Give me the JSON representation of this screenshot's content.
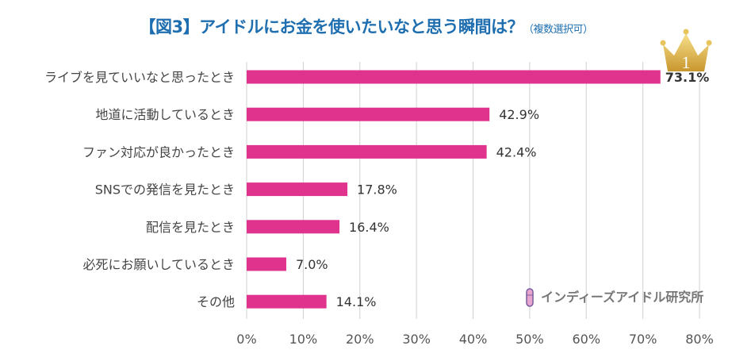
{
  "title": "【図3】アイドルにお金を使いたいなと思う瞬間は？",
  "subtitle": "（複数選択可）",
  "brand": "インディーズアイドル研究所",
  "crown_badge": "1",
  "colors": {
    "bar": "#e0338e",
    "top_label": "#c8206f",
    "title": "#1f6fb0",
    "grid": "#d0d0d0"
  },
  "chart_data": {
    "type": "bar",
    "orientation": "horizontal",
    "categories": [
      "ライブを見ていいなと思ったとき",
      "地道に活動しているとき",
      "ファン対応が良かったとき",
      "SNSでの発信を見たとき",
      "配信を見たとき",
      "必死にお願いしているとき",
      "その他"
    ],
    "values": [
      73.1,
      42.9,
      42.4,
      17.8,
      16.4,
      7.0,
      14.1
    ],
    "data_labels": [
      "73.1%",
      "42.9%",
      "42.4%",
      "17.8%",
      "16.4%",
      "7.0%",
      "14.1%"
    ],
    "xlim": [
      0,
      80
    ],
    "x_ticks": [
      "0%",
      "10%",
      "20%",
      "30%",
      "40%",
      "50%",
      "60%",
      "70%",
      "80%"
    ],
    "grid": true,
    "legend": "none"
  }
}
